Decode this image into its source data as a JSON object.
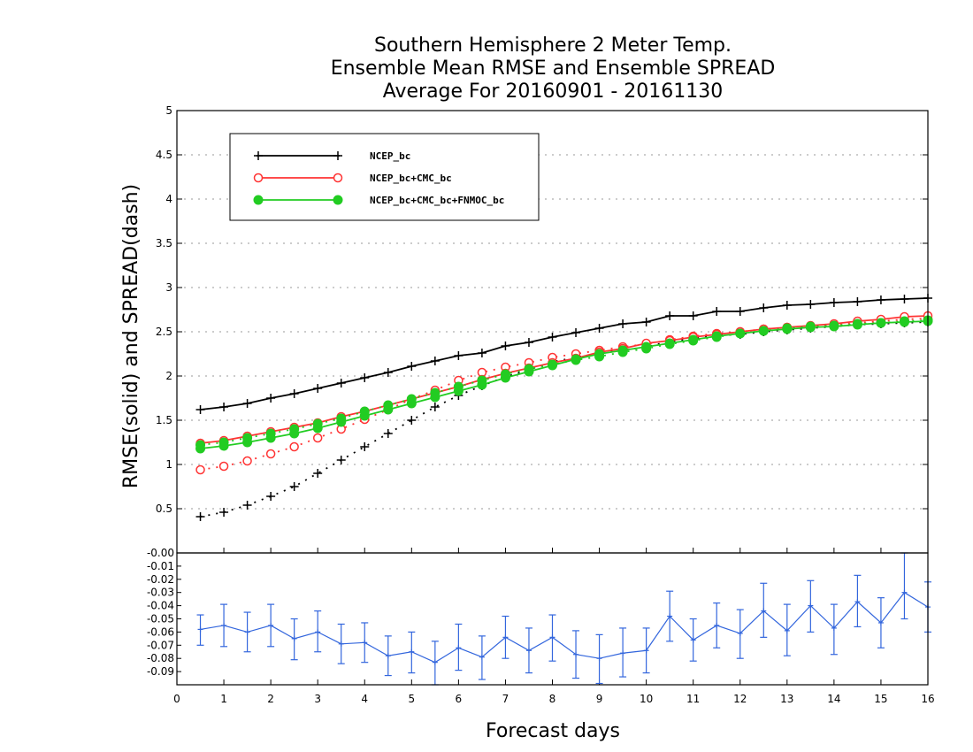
{
  "chart_data": {
    "type": "line",
    "title_lines": [
      "Southern Hemisphere 2 Meter Temp.",
      "Ensemble Mean RMSE and Ensemble SPREAD",
      "Average For 20160901 - 20161130"
    ],
    "xlabel": "Forecast days",
    "ylabel": "RMSE(solid) and SPREAD(dash)",
    "xlim": [
      0,
      16
    ],
    "ylim": [
      0,
      5
    ],
    "x_ticks": [
      "0",
      "1",
      "2",
      "3",
      "4",
      "5",
      "6",
      "7",
      "8",
      "9",
      "10",
      "11",
      "12",
      "13",
      "14",
      "15",
      "16"
    ],
    "y_ticks": [
      "0.5",
      "1",
      "1.5",
      "2",
      "2.5",
      "3",
      "3.5",
      "4",
      "4.5",
      "5"
    ],
    "grid": true,
    "legend_placement": "top-left",
    "x": [
      0.5,
      1,
      1.5,
      2,
      2.5,
      3,
      3.5,
      4,
      4.5,
      5,
      5.5,
      6,
      6.5,
      7,
      7.5,
      8,
      8.5,
      9,
      9.5,
      10,
      10.5,
      11,
      11.5,
      12,
      12.5,
      13,
      13.5,
      14,
      14.5,
      15,
      15.5,
      16
    ],
    "series": [
      {
        "name": "NCEP_bc",
        "color": "#000000",
        "marker": "plus",
        "rmse": [
          1.62,
          1.65,
          1.69,
          1.75,
          1.8,
          1.86,
          1.92,
          1.98,
          2.04,
          2.11,
          2.17,
          2.23,
          2.26,
          2.34,
          2.38,
          2.44,
          2.49,
          2.54,
          2.59,
          2.61,
          2.68,
          2.68,
          2.73,
          2.73,
          2.77,
          2.8,
          2.81,
          2.83,
          2.84,
          2.86,
          2.87,
          2.88
        ],
        "spread": [
          0.41,
          0.46,
          0.54,
          0.64,
          0.75,
          0.9,
          1.05,
          1.2,
          1.35,
          1.5,
          1.65,
          1.78,
          1.89,
          1.99,
          2.07,
          2.16,
          2.21,
          2.26,
          2.29,
          2.33,
          2.39,
          2.42,
          2.46,
          2.47,
          2.5,
          2.52,
          2.54,
          2.56,
          2.58,
          2.59,
          2.6,
          2.61
        ]
      },
      {
        "name": "NCEP_bc+CMC_bc",
        "color": "#ff3333",
        "marker": "open-circle",
        "rmse": [
          1.24,
          1.27,
          1.32,
          1.37,
          1.42,
          1.47,
          1.54,
          1.6,
          1.67,
          1.74,
          1.81,
          1.88,
          1.96,
          2.03,
          2.09,
          2.15,
          2.2,
          2.27,
          2.31,
          2.37,
          2.4,
          2.44,
          2.47,
          2.5,
          2.53,
          2.55,
          2.57,
          2.59,
          2.62,
          2.64,
          2.67,
          2.68
        ],
        "spread": [
          0.94,
          0.98,
          1.04,
          1.12,
          1.2,
          1.3,
          1.4,
          1.51,
          1.62,
          1.74,
          1.84,
          1.95,
          2.04,
          2.1,
          2.15,
          2.21,
          2.25,
          2.29,
          2.33,
          2.36,
          2.41,
          2.45,
          2.48,
          2.5,
          2.53,
          2.55,
          2.56,
          2.58,
          2.6,
          2.62,
          2.64,
          2.65
        ]
      },
      {
        "name": "NCEP_bc+CMC_bc+FNMOC_bc",
        "color": "#22cc22",
        "marker": "filled-circle",
        "rmse": [
          1.18,
          1.21,
          1.25,
          1.3,
          1.35,
          1.41,
          1.48,
          1.55,
          1.62,
          1.69,
          1.76,
          1.83,
          1.9,
          1.98,
          2.05,
          2.12,
          2.19,
          2.25,
          2.29,
          2.33,
          2.37,
          2.41,
          2.45,
          2.48,
          2.51,
          2.53,
          2.55,
          2.56,
          2.58,
          2.6,
          2.61,
          2.62
        ],
        "spread": [
          1.22,
          1.25,
          1.3,
          1.35,
          1.4,
          1.46,
          1.52,
          1.6,
          1.67,
          1.74,
          1.81,
          1.88,
          1.95,
          2.02,
          2.08,
          2.13,
          2.18,
          2.22,
          2.27,
          2.31,
          2.36,
          2.4,
          2.44,
          2.48,
          2.51,
          2.54,
          2.56,
          2.57,
          2.59,
          2.6,
          2.62,
          2.63
        ]
      }
    ],
    "difference_panel": {
      "ylim": [
        -0.1,
        0
      ],
      "y_ticks": [
        "-0.00",
        "-0.01",
        "-0.02",
        "-0.03",
        "-0.04",
        "-0.05",
        "-0.06",
        "-0.07",
        "-0.08",
        "-0.09"
      ],
      "color": "#3366dd",
      "x": [
        0.5,
        1,
        1.5,
        2,
        2.5,
        3,
        3.5,
        4,
        4.5,
        5,
        5.5,
        6,
        6.5,
        7,
        7.5,
        8,
        8.5,
        9,
        9.5,
        10,
        10.5,
        11,
        11.5,
        12,
        12.5,
        13,
        13.5,
        14,
        14.5,
        15,
        15.5,
        16
      ],
      "values": [
        -0.058,
        -0.055,
        -0.06,
        -0.055,
        -0.065,
        -0.06,
        -0.069,
        -0.068,
        -0.078,
        -0.075,
        -0.083,
        -0.072,
        -0.079,
        -0.064,
        -0.074,
        -0.064,
        -0.077,
        -0.08,
        -0.076,
        -0.074,
        -0.048,
        -0.066,
        -0.055,
        -0.061,
        -0.044,
        -0.059,
        -0.04,
        -0.057,
        -0.037,
        -0.053,
        -0.03,
        -0.041
      ],
      "upper": [
        -0.047,
        -0.039,
        -0.045,
        -0.039,
        -0.05,
        -0.044,
        -0.054,
        -0.053,
        -0.063,
        -0.06,
        -0.067,
        -0.054,
        -0.063,
        -0.048,
        -0.057,
        -0.047,
        -0.059,
        -0.062,
        -0.057,
        -0.057,
        -0.029,
        -0.05,
        -0.038,
        -0.043,
        -0.023,
        -0.039,
        -0.021,
        -0.039,
        -0.017,
        -0.034,
        0.0,
        -0.022
      ],
      "lower": [
        -0.07,
        -0.071,
        -0.075,
        -0.071,
        -0.081,
        -0.075,
        -0.084,
        -0.083,
        -0.093,
        -0.091,
        -0.1,
        -0.089,
        -0.096,
        -0.08,
        -0.091,
        -0.082,
        -0.095,
        -0.099,
        -0.094,
        -0.091,
        -0.067,
        -0.082,
        -0.072,
        -0.08,
        -0.064,
        -0.078,
        -0.06,
        -0.077,
        -0.056,
        -0.072,
        -0.05,
        -0.06
      ]
    }
  }
}
